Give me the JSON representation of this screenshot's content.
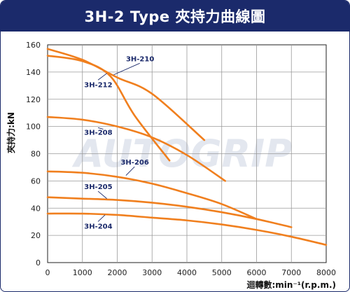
{
  "chart_data": {
    "type": "line",
    "title": "3H-2 Type 夾持力曲線圖",
    "xlabel": "迴轉數:min⁻¹(r.p.m.)",
    "ylabel": "夾持力:kN",
    "xlim": [
      0,
      8000
    ],
    "ylim": [
      0,
      160
    ],
    "xticks": [
      0,
      1000,
      2000,
      3000,
      4000,
      5000,
      6000,
      7000,
      8000
    ],
    "yticks": [
      0,
      20,
      40,
      60,
      80,
      100,
      120,
      140,
      160
    ],
    "grid": true,
    "watermark": "AUTOGRIP",
    "line_color": "#f07f1e",
    "series": [
      {
        "name": "3H-210",
        "x": [
          0,
          1000,
          2000,
          3000,
          4500
        ],
        "y": [
          157,
          149,
          136,
          124,
          90
        ]
      },
      {
        "name": "3H-212",
        "x": [
          0,
          1000,
          1800,
          2500,
          3500
        ],
        "y": [
          152,
          148,
          137,
          108,
          75
        ]
      },
      {
        "name": "3H-208",
        "x": [
          0,
          1000,
          2000,
          3000,
          4000,
          5100
        ],
        "y": [
          107,
          105,
          100,
          92,
          79,
          60
        ]
      },
      {
        "name": "3H-206",
        "x": [
          0,
          1000,
          2000,
          3000,
          4000,
          5000,
          6000
        ],
        "y": [
          67,
          66,
          63,
          58,
          51,
          43,
          32
        ]
      },
      {
        "name": "3H-205",
        "x": [
          0,
          1000,
          2000,
          3000,
          4000,
          5000,
          6000,
          7000
        ],
        "y": [
          48,
          47,
          46,
          44,
          41,
          37,
          32,
          26
        ]
      },
      {
        "name": "3H-204",
        "x": [
          0,
          1000,
          2000,
          3000,
          4000,
          5000,
          6000,
          7000,
          8000
        ],
        "y": [
          36,
          36,
          35,
          33,
          31,
          28,
          24,
          19,
          13
        ]
      }
    ],
    "labels": [
      {
        "series": "3H-210",
        "x": 2250,
        "y": 148,
        "ax": 1900,
        "ay": 138
      },
      {
        "series": "3H-212",
        "x": 1050,
        "y": 129,
        "ax": 1700,
        "ay": 139
      },
      {
        "series": "3H-208",
        "x": 1050,
        "y": 94,
        "ax": 1600,
        "ay": 98
      },
      {
        "series": "3H-206",
        "x": 2100,
        "y": 72,
        "ax": 2250,
        "ay": 64
      },
      {
        "series": "3H-205",
        "x": 1050,
        "y": 54,
        "ax": 1700,
        "ay": 47
      },
      {
        "series": "3H-204",
        "x": 1050,
        "y": 25,
        "ax": 1650,
        "ay": 35
      }
    ]
  }
}
